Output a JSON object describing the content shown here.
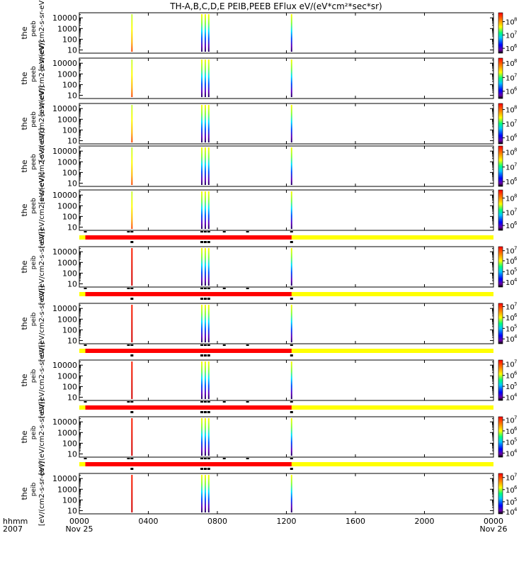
{
  "chart_data": {
    "type": "heatmap",
    "title": "TH-A,B,C,D,E PEIB,PEEB EFlux eV/(eV*cm²*sec*sr)",
    "x_axis": {
      "ticks": [
        {
          "value": 0,
          "top": "0000",
          "bottom": "Nov 25"
        },
        {
          "value": 4,
          "top": "0400",
          "bottom": ""
        },
        {
          "value": 8,
          "top": "0800",
          "bottom": ""
        },
        {
          "value": 12,
          "top": "1200",
          "bottom": ""
        },
        {
          "value": 16,
          "top": "1600",
          "bottom": ""
        },
        {
          "value": 20,
          "top": "2000",
          "bottom": ""
        },
        {
          "value": 24,
          "top": "0000",
          "bottom": "Nov 26"
        }
      ],
      "corner_top": "hhmm",
      "corner_bottom": "2007",
      "range_hours": [
        0,
        24
      ]
    },
    "y_axis": {
      "scale": "log",
      "range": [
        5,
        30000
      ],
      "ticks": [
        {
          "value": 10,
          "label": "10"
        },
        {
          "value": 100,
          "label": "100"
        },
        {
          "value": 1000,
          "label": "1000"
        },
        {
          "value": 10000,
          "label": "10000"
        }
      ]
    },
    "spike_times_hours": [
      3.05,
      7.1,
      7.3,
      7.5,
      12.3
    ],
    "bar_times_hours": [
      0.35,
      2.85,
      3.05,
      7.1,
      7.3,
      7.5,
      8.4,
      9.75,
      12.3
    ],
    "panels": [
      {
        "id": "tha-peeb",
        "label_main": "the",
        "label_sub": "peeb",
        "units": "[eV/(eV/cm2-s-sr-eV)]",
        "cbar_ticks": [
          {
            "label": "10",
            "exp": "8",
            "frac": 0.22
          },
          {
            "label": "10",
            "exp": "7",
            "frac": 0.55
          },
          {
            "label": "10",
            "exp": "6",
            "frac": 0.88
          }
        ],
        "kind": "electron",
        "status_bar_after": false
      },
      {
        "id": "thb-peeb",
        "label_main": "the",
        "label_sub": "peeb",
        "units": "[eV/(eV/cm2-s-sr-eV)]",
        "cbar_ticks": [
          {
            "label": "10",
            "exp": "8",
            "frac": 0.12
          },
          {
            "label": "10",
            "exp": "7",
            "frac": 0.48
          },
          {
            "label": "10",
            "exp": "6",
            "frac": 0.82
          }
        ],
        "kind": "electron",
        "status_bar_after": false
      },
      {
        "id": "thc-peeb",
        "label_main": "the",
        "label_sub": "peeb",
        "units": "[eV/(eV/cm2-s-sr-eV)]",
        "cbar_ticks": [
          {
            "label": "10",
            "exp": "8",
            "frac": 0.15
          },
          {
            "label": "10",
            "exp": "7",
            "frac": 0.5
          },
          {
            "label": "10",
            "exp": "6",
            "frac": 0.85
          }
        ],
        "kind": "electron",
        "status_bar_after": false
      },
      {
        "id": "thd-peeb",
        "label_main": "the",
        "label_sub": "peeb",
        "units": "[eV/(eV/cm2-s-sr-eV)]",
        "cbar_ticks": [
          {
            "label": "10",
            "exp": "8",
            "frac": 0.15
          },
          {
            "label": "10",
            "exp": "7",
            "frac": 0.52
          },
          {
            "label": "10",
            "exp": "6",
            "frac": 0.88
          }
        ],
        "kind": "electron",
        "status_bar_after": false
      },
      {
        "id": "the-peeb",
        "label_main": "the",
        "label_sub": "peeb",
        "units": "[eV/(eV/cm2-s-sr-eV)]",
        "cbar_ticks": [
          {
            "label": "10",
            "exp": "8",
            "frac": 0.2
          },
          {
            "label": "10",
            "exp": "7",
            "frac": 0.55
          },
          {
            "label": "10",
            "exp": "6",
            "frac": 0.88
          }
        ],
        "kind": "electron",
        "status_bar_after": true
      },
      {
        "id": "tha-peib",
        "label_main": "the",
        "label_sub": "peib",
        "units": "[eV/(eV/cm2-s-sr-eV)]",
        "cbar_ticks": [
          {
            "label": "10",
            "exp": "7",
            "frac": 0.1
          },
          {
            "label": "10",
            "exp": "6",
            "frac": 0.35
          },
          {
            "label": "10",
            "exp": "5",
            "frac": 0.62
          },
          {
            "label": "10",
            "exp": "4",
            "frac": 0.88
          }
        ],
        "kind": "ion",
        "status_bar_after": true
      },
      {
        "id": "thb-peib",
        "label_main": "the",
        "label_sub": "peib",
        "units": "[eV/(eV/cm2-s-sr-eV)]",
        "cbar_ticks": [
          {
            "label": "10",
            "exp": "7",
            "frac": 0.08
          },
          {
            "label": "10",
            "exp": "6",
            "frac": 0.35
          },
          {
            "label": "10",
            "exp": "5",
            "frac": 0.62
          },
          {
            "label": "10",
            "exp": "4",
            "frac": 0.88
          }
        ],
        "kind": "ion",
        "status_bar_after": true
      },
      {
        "id": "thc-peib",
        "label_main": "the",
        "label_sub": "peib",
        "units": "[eV/(eV/cm2-s-sr-eV)]",
        "cbar_ticks": [
          {
            "label": "10",
            "exp": "7",
            "frac": 0.1
          },
          {
            "label": "10",
            "exp": "6",
            "frac": 0.38
          },
          {
            "label": "10",
            "exp": "5",
            "frac": 0.65
          },
          {
            "label": "10",
            "exp": "4",
            "frac": 0.92
          }
        ],
        "kind": "ion",
        "status_bar_after": true
      },
      {
        "id": "thd-peib",
        "label_main": "the",
        "label_sub": "peib",
        "units": "[eV/(eV/cm2-s-sr-eV)]",
        "cbar_ticks": [
          {
            "label": "10",
            "exp": "7",
            "frac": 0.08
          },
          {
            "label": "10",
            "exp": "6",
            "frac": 0.35
          },
          {
            "label": "10",
            "exp": "5",
            "frac": 0.62
          },
          {
            "label": "10",
            "exp": "4",
            "frac": 0.9
          }
        ],
        "kind": "ion",
        "status_bar_after": true
      },
      {
        "id": "the-peib",
        "label_main": "the",
        "label_sub": "peib",
        "units": "[eV/(cm2-s-sr-eV)]",
        "cbar_ticks": [
          {
            "label": "10",
            "exp": "7",
            "frac": 0.1
          },
          {
            "label": "10",
            "exp": "6",
            "frac": 0.4
          },
          {
            "label": "10",
            "exp": "5",
            "frac": 0.7
          },
          {
            "label": "10",
            "exp": "4",
            "frac": 0.95
          }
        ],
        "kind": "ion",
        "status_bar_after": false
      }
    ],
    "status_bar": {
      "red_range_hours": [
        0.35,
        12.3
      ],
      "yellow_range_hours": [
        0,
        24
      ],
      "red_color": "#ff0000",
      "yellow_color": "#ffff00"
    }
  }
}
